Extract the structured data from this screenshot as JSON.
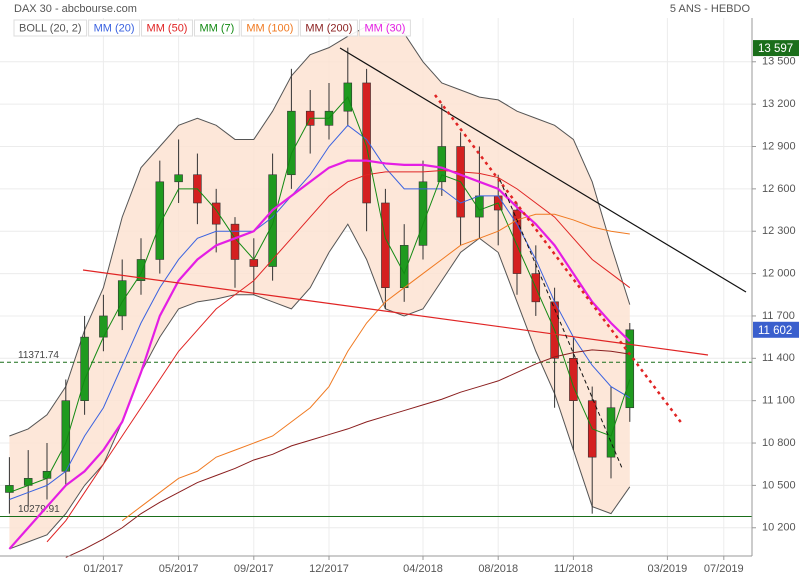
{
  "chart_data": {
    "type": "candlestick",
    "title": "DAX 30 - abcbourse.com",
    "subtitle": "5 ANS - HEBDO",
    "categories": [
      null,
      null,
      null,
      null,
      null,
      "01/2017",
      null,
      null,
      null,
      "05/2017",
      null,
      null,
      null,
      "09/2017",
      null,
      null,
      null,
      "12/2017",
      null,
      null,
      null,
      null,
      "04/2018",
      null,
      null,
      null,
      "08/2018",
      null,
      null,
      null,
      "11/2018",
      null,
      null,
      null,
      null,
      "03/2019",
      null,
      null,
      "07/2019",
      null
    ],
    "candles": {
      "up_color": "#1f9a1f",
      "down_color": "#d42020",
      "open": [
        10450,
        10500,
        10550,
        10600,
        11100,
        11550,
        11700,
        11950,
        12100,
        12650,
        12700,
        12500,
        12350,
        12100,
        12050,
        12700,
        13150,
        13050,
        13150,
        13350,
        12500,
        11900,
        12200,
        12650,
        12900,
        12400,
        12550,
        12450,
        12000,
        11800,
        11400,
        11100,
        10700,
        11050,
        null,
        null,
        null,
        null,
        null,
        null
      ],
      "high": [
        10700,
        10750,
        10800,
        11250,
        11700,
        11850,
        12100,
        12250,
        12800,
        12950,
        12850,
        12600,
        12400,
        12250,
        12850,
        13450,
        13300,
        13350,
        13600,
        13450,
        12600,
        12350,
        12800,
        13200,
        13000,
        12900,
        12700,
        12500,
        12200,
        11900,
        11550,
        11200,
        11200,
        11650,
        null,
        null,
        null,
        null,
        null,
        null
      ],
      "low": [
        10300,
        10350,
        10400,
        10500,
        11000,
        11450,
        11600,
        11850,
        12000,
        12500,
        12350,
        12150,
        11900,
        11850,
        11950,
        12600,
        12850,
        12950,
        13050,
        12300,
        11750,
        11800,
        12100,
        12550,
        12200,
        12250,
        12200,
        11850,
        11700,
        11050,
        10750,
        10300,
        10550,
        10950,
        null,
        null,
        null,
        null,
        null,
        null
      ],
      "close": [
        10500,
        10550,
        10600,
        11100,
        11550,
        11700,
        11950,
        12100,
        12650,
        12700,
        12500,
        12350,
        12100,
        12050,
        12700,
        13150,
        13050,
        13150,
        13350,
        12500,
        11900,
        12200,
        12650,
        12900,
        12400,
        12550,
        12450,
        12000,
        11800,
        11400,
        11100,
        10700,
        11050,
        11602,
        null,
        null,
        null,
        null,
        null,
        null
      ]
    },
    "bands": {
      "name": "BOLL (20, 2)",
      "color": "#555555",
      "fill": "#fde3d2",
      "upper": [
        10850,
        10900,
        11000,
        11200,
        11600,
        11900,
        12400,
        12750,
        12900,
        13050,
        13100,
        13050,
        12950,
        12950,
        13150,
        13400,
        13550,
        13600,
        13680,
        13750,
        13780,
        13700,
        13500,
        13350,
        13300,
        13250,
        13230,
        13150,
        13100,
        13050,
        12950,
        12650,
        12200,
        11780,
        null,
        null,
        null,
        null,
        null,
        null
      ],
      "lower": [
        10050,
        10100,
        10150,
        10300,
        10500,
        10650,
        10950,
        11300,
        11550,
        11750,
        11800,
        11820,
        11850,
        11850,
        11800,
        11750,
        11900,
        12150,
        12350,
        12100,
        11750,
        11700,
        11750,
        11950,
        12150,
        12250,
        12150,
        11800,
        11450,
        11150,
        10750,
        10350,
        10300,
        10490,
        null,
        null,
        null,
        null,
        null,
        null
      ]
    },
    "series": [
      {
        "name": "MM (20)",
        "color": "#3a62e0",
        "values": [
          10400,
          10450,
          10500,
          10600,
          10850,
          11050,
          11350,
          11650,
          11900,
          12100,
          12250,
          12300,
          12300,
          12300,
          12400,
          12550,
          12700,
          12900,
          13050,
          12950,
          12750,
          12600,
          12600,
          12600,
          12500,
          12550,
          12550,
          12350,
          12100,
          11800,
          11550,
          11350,
          11200,
          11120,
          null,
          null,
          null,
          null,
          null,
          null
        ]
      },
      {
        "name": "MM (50)",
        "color": "#e02424",
        "values": [
          null,
          null,
          10100,
          10250,
          10450,
          10650,
          10850,
          11050,
          11250,
          11450,
          11600,
          11750,
          11850,
          11950,
          12100,
          12250,
          12400,
          12550,
          12650,
          12700,
          12720,
          12720,
          12720,
          12730,
          12720,
          12710,
          12680,
          12600,
          12500,
          12400,
          12250,
          12100,
          12000,
          11900,
          null,
          null,
          null,
          null,
          null,
          null
        ]
      },
      {
        "name": "MM (7)",
        "color": "#138a13",
        "values": [
          10450,
          10500,
          10550,
          10800,
          11250,
          11550,
          11800,
          12000,
          12350,
          12600,
          12600,
          12450,
          12250,
          12100,
          12350,
          12850,
          13100,
          13100,
          13250,
          12900,
          12250,
          12000,
          12350,
          12700,
          12650,
          12450,
          12500,
          12200,
          11900,
          11600,
          11200,
          10900,
          10850,
          11250,
          null,
          null,
          null,
          null,
          null,
          null
        ]
      },
      {
        "name": "MM (100)",
        "color": "#f07a22",
        "values": [
          null,
          null,
          null,
          null,
          null,
          null,
          10250,
          10350,
          10450,
          10550,
          10600,
          10700,
          10750,
          10800,
          10850,
          10950,
          11050,
          11200,
          11450,
          11650,
          11800,
          11900,
          12000,
          12100,
          12200,
          12250,
          12300,
          12380,
          12420,
          12420,
          12380,
          12330,
          12300,
          12280,
          null,
          null,
          null,
          null,
          null,
          null
        ]
      },
      {
        "name": "MM (200)",
        "color": "#8a1e1e",
        "values": [
          null,
          null,
          null,
          9990,
          10050,
          10120,
          10200,
          10300,
          10380,
          10450,
          10520,
          10570,
          10620,
          10680,
          10720,
          10780,
          10820,
          10860,
          10900,
          10950,
          10990,
          11030,
          11070,
          11110,
          11160,
          11200,
          11240,
          11300,
          11360,
          11410,
          11440,
          11460,
          11450,
          11430,
          null,
          null,
          null,
          null,
          null,
          null
        ]
      },
      {
        "name": "MM (30)",
        "color": "#e41ee4",
        "values": [
          10050,
          10200,
          10350,
          10500,
          10600,
          10750,
          10950,
          11300,
          11700,
          11950,
          12100,
          12200,
          12250,
          12300,
          12450,
          12550,
          12650,
          12750,
          12800,
          12800,
          12780,
          12770,
          12770,
          12750,
          12700,
          12650,
          12600,
          12470,
          12350,
          12200,
          12000,
          11800,
          11650,
          11520,
          null,
          null,
          null,
          null,
          null,
          null
        ]
      }
    ],
    "levels": [
      {
        "value": 11371.74,
        "color": "#1a6e1a",
        "dashed": true
      },
      {
        "value": 10279.91,
        "color": "#1a6e1a",
        "dashed": false
      }
    ],
    "price_tags": [
      {
        "value": 13597,
        "label": "13 597",
        "color": "#1a6e1a"
      },
      {
        "value": 11602,
        "label": "11 602",
        "color": "#3a5fcd"
      }
    ],
    "ylim": [
      10000,
      13810
    ],
    "yticks": [
      {
        "value": 10200,
        "label": "10 200"
      },
      {
        "value": 10500,
        "label": "10 500"
      },
      {
        "value": 10800,
        "label": "10 800"
      },
      {
        "value": 11100,
        "label": "11 100"
      },
      {
        "value": 11400,
        "label": "11 400"
      },
      {
        "value": 11700,
        "label": "11 700"
      },
      {
        "value": 12000,
        "label": "12 000"
      },
      {
        "value": 12300,
        "label": "12 300"
      },
      {
        "value": 12600,
        "label": "12 600"
      },
      {
        "value": 12900,
        "label": "12 900"
      },
      {
        "value": 13200,
        "label": "13 200"
      },
      {
        "value": 13500,
        "label": "13 500"
      }
    ],
    "grid": true
  }
}
